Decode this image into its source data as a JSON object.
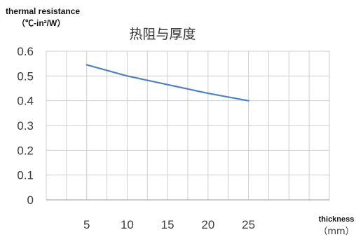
{
  "chart_data": {
    "type": "line",
    "title": "热阻与厚度",
    "ylabel_line1": "thermal resistance",
    "ylabel_line2": "（℃-in²/W）",
    "xlabel_line1": "thickness",
    "xlabel_line2": "（mm）",
    "x_ticks": [
      "5",
      "10",
      "15",
      "20",
      "25"
    ],
    "y_ticks": [
      "0",
      "0.1",
      "0.2",
      "0.3",
      "0.4",
      "0.5",
      "0.6"
    ],
    "xlim": [
      0,
      35
    ],
    "ylim": [
      0,
      0.6
    ],
    "grid": true,
    "series": [
      {
        "color": "#4f81bd",
        "x": [
          5,
          10,
          15,
          20,
          25
        ],
        "y": [
          0.545,
          0.5,
          0.465,
          0.43,
          0.4
        ]
      }
    ]
  }
}
